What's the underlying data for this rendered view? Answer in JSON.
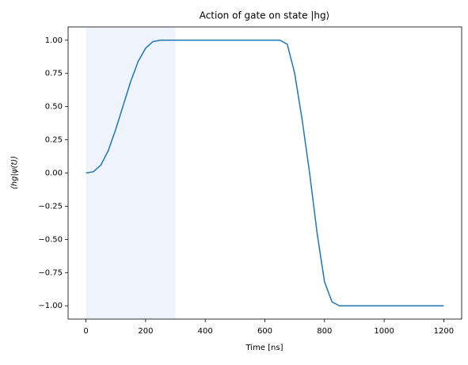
{
  "chart_data": {
    "type": "line",
    "title": "Action of gate on state |hg⟩",
    "xlabel": "Time [ns]",
    "ylabel": "⟨hg|ψ(t)⟩",
    "x": [
      0,
      25,
      50,
      75,
      100,
      125,
      150,
      175,
      200,
      225,
      250,
      275,
      300,
      325,
      350,
      375,
      400,
      425,
      450,
      475,
      500,
      525,
      550,
      575,
      600,
      625,
      650,
      675,
      700,
      725,
      750,
      775,
      800,
      825,
      850,
      875,
      900,
      925,
      950,
      975,
      1000,
      1025,
      1050,
      1075,
      1100,
      1125,
      1150,
      1175,
      1200
    ],
    "series": [
      {
        "color": "#1f77b4",
        "values": [
          0,
          0.01,
          0.06,
          0.17,
          0.33,
          0.51,
          0.69,
          0.84,
          0.94,
          0.99,
          1,
          1,
          1,
          1,
          1,
          1,
          1,
          1,
          1,
          1,
          1,
          1,
          1,
          1,
          1,
          1,
          1,
          0.97,
          0.75,
          0.4,
          0,
          -0.45,
          -0.82,
          -0.97,
          -1,
          -1,
          -1,
          -1,
          -1,
          -1,
          -1,
          -1,
          -1,
          -1,
          -1,
          -1,
          -1,
          -1,
          -1
        ]
      }
    ],
    "span": {
      "range": [
        0,
        300
      ],
      "color": "#eef3fc"
    },
    "xlim": [
      -60,
      1260
    ],
    "xticks": [
      0,
      200,
      400,
      600,
      800,
      1000,
      1200
    ],
    "ylim": [
      -1.1,
      1.1
    ],
    "yticks": [
      {
        "value": -1,
        "label": "−1.00"
      },
      {
        "value": -0.75,
        "label": "−0.75"
      },
      {
        "value": -0.5,
        "label": "−0.50"
      },
      {
        "value": -0.25,
        "label": "−0.25"
      },
      {
        "value": 0,
        "label": "0.00"
      },
      {
        "value": 0.25,
        "label": "0.25"
      },
      {
        "value": 0.5,
        "label": "0.50"
      },
      {
        "value": 0.75,
        "label": "0.75"
      },
      {
        "value": 1,
        "label": "1.00"
      }
    ],
    "grid": false
  }
}
